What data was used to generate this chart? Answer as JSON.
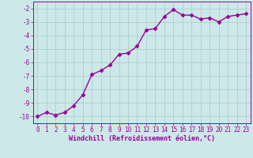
{
  "x": [
    0,
    1,
    2,
    3,
    4,
    5,
    6,
    7,
    8,
    9,
    10,
    11,
    12,
    13,
    14,
    15,
    16,
    17,
    18,
    19,
    20,
    21,
    22,
    23
  ],
  "y": [
    -10.0,
    -9.7,
    -9.9,
    -9.7,
    -9.2,
    -8.4,
    -6.9,
    -6.6,
    -6.2,
    -5.4,
    -5.3,
    -4.8,
    -3.6,
    -3.5,
    -2.6,
    -2.1,
    -2.5,
    -2.5,
    -2.8,
    -2.7,
    -3.0,
    -2.6,
    -2.5,
    -2.4
  ],
  "line_color": "#990099",
  "marker": "D",
  "marker_size": 2.5,
  "bg_color": "#cce8e8",
  "grid_color": "#b0cece",
  "xlabel": "Windchill (Refroidissement éolien,°C)",
  "xlabel_color": "#990099",
  "tick_color": "#990099",
  "ylim": [
    -10.5,
    -1.5
  ],
  "xlim": [
    -0.5,
    23.5
  ],
  "yticks": [
    -10,
    -9,
    -8,
    -7,
    -6,
    -5,
    -4,
    -3,
    -2
  ],
  "xticks": [
    0,
    1,
    2,
    3,
    4,
    5,
    6,
    7,
    8,
    9,
    10,
    11,
    12,
    13,
    14,
    15,
    16,
    17,
    18,
    19,
    20,
    21,
    22,
    23
  ],
  "line_width": 1.0,
  "tick_fontsize": 5.5,
  "xlabel_fontsize": 6.0
}
